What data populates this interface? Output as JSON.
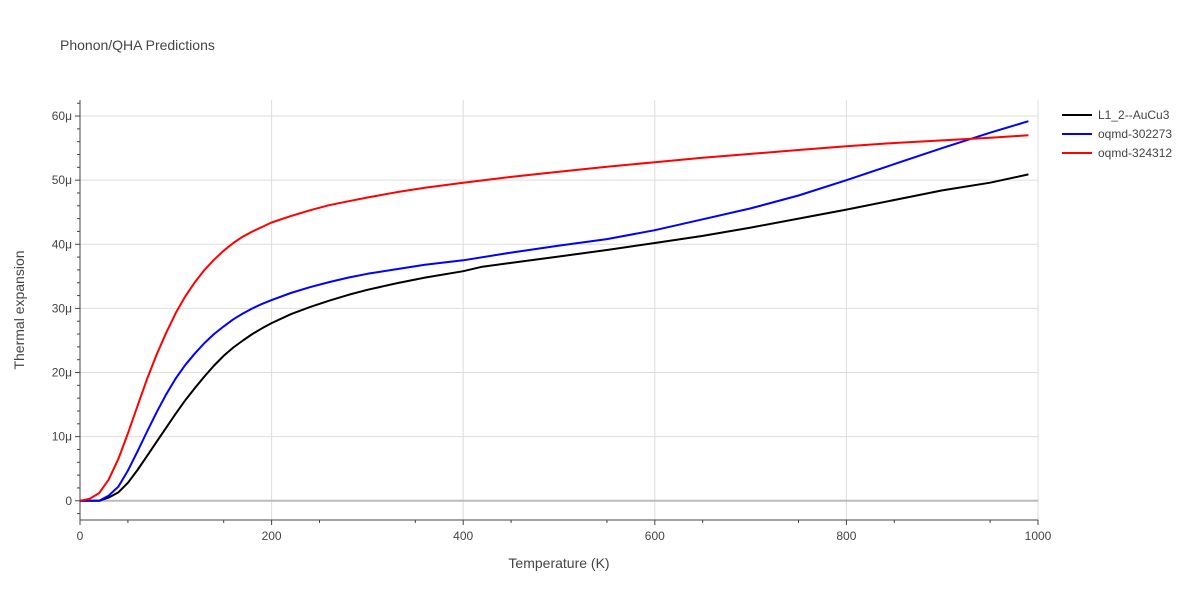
{
  "chart_data": {
    "type": "line",
    "title": "Phonon/QHA Predictions",
    "xlabel": "Temperature (K)",
    "ylabel": "Thermal expansion",
    "xlim": [
      0,
      1000
    ],
    "ylim": [
      -3,
      62.5
    ],
    "x_ticks": [
      0,
      200,
      400,
      600,
      800,
      1000
    ],
    "x_tick_labels": [
      "0",
      "200",
      "400",
      "600",
      "800",
      "1000"
    ],
    "y_ticks": [
      0,
      10,
      20,
      30,
      40,
      50,
      60
    ],
    "y_tick_labels": [
      "0",
      "10μ",
      "20μ",
      "30μ",
      "40μ",
      "50μ",
      "60μ"
    ],
    "grid": true,
    "legend_position": "top-right",
    "series": [
      {
        "name": "L1_2--AuCu3",
        "color": "#000000",
        "points": [
          [
            0,
            0
          ],
          [
            10,
            0
          ],
          [
            20,
            0
          ],
          [
            30,
            0.5
          ],
          [
            40,
            1.3
          ],
          [
            50,
            2.8
          ],
          [
            60,
            4.8
          ],
          [
            70,
            7
          ],
          [
            80,
            9.2
          ],
          [
            90,
            11.4
          ],
          [
            100,
            13.6
          ],
          [
            110,
            15.7
          ],
          [
            120,
            17.6
          ],
          [
            130,
            19.4
          ],
          [
            140,
            21.1
          ],
          [
            150,
            22.6
          ],
          [
            160,
            23.9
          ],
          [
            170,
            25
          ],
          [
            180,
            26
          ],
          [
            190,
            26.9
          ],
          [
            200,
            27.7
          ],
          [
            220,
            29.1
          ],
          [
            240,
            30.2
          ],
          [
            260,
            31.2
          ],
          [
            280,
            32.1
          ],
          [
            300,
            32.9
          ],
          [
            330,
            33.9
          ],
          [
            360,
            34.8
          ],
          [
            400,
            35.8
          ],
          [
            420,
            36.5
          ],
          [
            450,
            37.1
          ],
          [
            500,
            38.1
          ],
          [
            550,
            39.1
          ],
          [
            600,
            40.2
          ],
          [
            650,
            41.3
          ],
          [
            700,
            42.6
          ],
          [
            750,
            44
          ],
          [
            800,
            45.4
          ],
          [
            850,
            46.9
          ],
          [
            900,
            48.4
          ],
          [
            950,
            49.6
          ],
          [
            990,
            50.9
          ]
        ]
      },
      {
        "name": "oqmd-302273",
        "color": "#0000ff",
        "points": [
          [
            0,
            0
          ],
          [
            10,
            0
          ],
          [
            20,
            0
          ],
          [
            30,
            0.8
          ],
          [
            40,
            2.2
          ],
          [
            50,
            4.7
          ],
          [
            60,
            7.7
          ],
          [
            70,
            10.8
          ],
          [
            80,
            13.8
          ],
          [
            90,
            16.6
          ],
          [
            100,
            19.1
          ],
          [
            110,
            21.2
          ],
          [
            120,
            23
          ],
          [
            130,
            24.6
          ],
          [
            140,
            26
          ],
          [
            150,
            27.2
          ],
          [
            160,
            28.3
          ],
          [
            170,
            29.2
          ],
          [
            180,
            30
          ],
          [
            190,
            30.7
          ],
          [
            200,
            31.3
          ],
          [
            220,
            32.4
          ],
          [
            240,
            33.3
          ],
          [
            260,
            34.1
          ],
          [
            280,
            34.8
          ],
          [
            300,
            35.4
          ],
          [
            330,
            36.1
          ],
          [
            360,
            36.8
          ],
          [
            400,
            37.5
          ],
          [
            450,
            38.7
          ],
          [
            500,
            39.8
          ],
          [
            550,
            40.8
          ],
          [
            600,
            42.2
          ],
          [
            650,
            43.9
          ],
          [
            700,
            45.6
          ],
          [
            750,
            47.6
          ],
          [
            800,
            50
          ],
          [
            850,
            52.5
          ],
          [
            900,
            55
          ],
          [
            950,
            57.4
          ],
          [
            990,
            59.2
          ]
        ]
      },
      {
        "name": "oqmd-324312",
        "color": "#ff0000",
        "points": [
          [
            0,
            0
          ],
          [
            10,
            0.3
          ],
          [
            20,
            1.2
          ],
          [
            30,
            3.3
          ],
          [
            40,
            6.5
          ],
          [
            50,
            10.5
          ],
          [
            60,
            14.8
          ],
          [
            70,
            19
          ],
          [
            80,
            22.8
          ],
          [
            90,
            26.2
          ],
          [
            100,
            29.3
          ],
          [
            110,
            31.9
          ],
          [
            120,
            34.1
          ],
          [
            130,
            36
          ],
          [
            140,
            37.6
          ],
          [
            150,
            39
          ],
          [
            160,
            40.2
          ],
          [
            170,
            41.2
          ],
          [
            180,
            42
          ],
          [
            190,
            42.7
          ],
          [
            200,
            43.4
          ],
          [
            220,
            44.4
          ],
          [
            240,
            45.3
          ],
          [
            260,
            46.1
          ],
          [
            280,
            46.7
          ],
          [
            300,
            47.3
          ],
          [
            330,
            48.1
          ],
          [
            360,
            48.8
          ],
          [
            400,
            49.6
          ],
          [
            450,
            50.5
          ],
          [
            500,
            51.3
          ],
          [
            550,
            52.1
          ],
          [
            600,
            52.8
          ],
          [
            650,
            53.5
          ],
          [
            700,
            54.1
          ],
          [
            750,
            54.7
          ],
          [
            800,
            55.3
          ],
          [
            850,
            55.8
          ],
          [
            900,
            56.2
          ],
          [
            950,
            56.6
          ],
          [
            990,
            57
          ]
        ]
      }
    ]
  }
}
